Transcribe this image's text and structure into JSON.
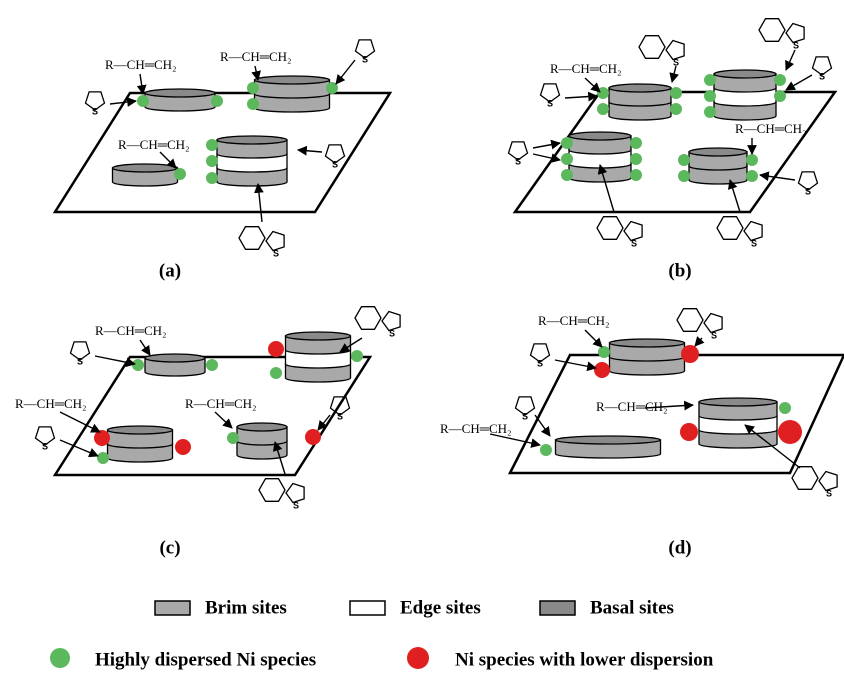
{
  "olefin": "R—CH═CH₂",
  "sulfur": "S",
  "panels": [
    {
      "label": "(a)"
    },
    {
      "label": "(b)"
    },
    {
      "label": "(c)"
    },
    {
      "label": "(d)"
    }
  ],
  "legend": {
    "sites": [
      {
        "label": "Brim sites"
      },
      {
        "label": "Edge sites"
      },
      {
        "label": "Basal sites"
      }
    ],
    "species": [
      {
        "label": "Highly dispersed Ni species"
      },
      {
        "label": "Ni species with lower dispersion"
      }
    ]
  }
}
